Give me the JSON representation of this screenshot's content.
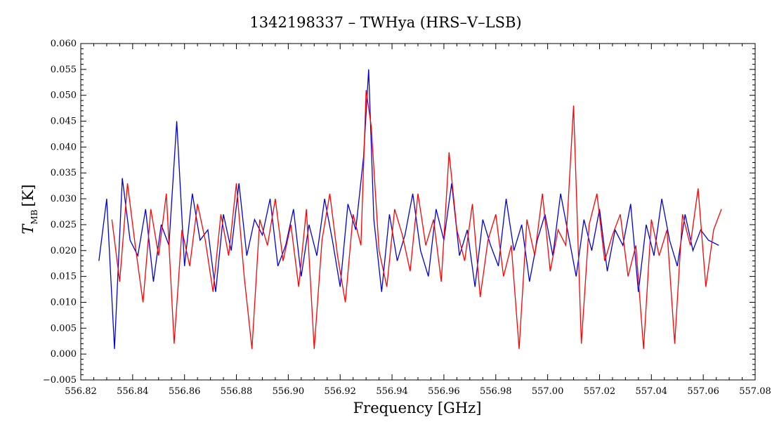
{
  "chart_data": {
    "type": "line",
    "title": "1342198337 – TWHya (HRS–V–LSB)",
    "xlabel": "Frequency [GHz]",
    "ylabel_main": "T",
    "ylabel_sub": "MB",
    "ylabel_unit": "[K]",
    "xlim": [
      556.82,
      557.08
    ],
    "ylim": [
      -0.005,
      0.06
    ],
    "x_ticks": [
      "556.82",
      "556.84",
      "556.86",
      "556.88",
      "556.90",
      "556.92",
      "556.94",
      "556.96",
      "556.98",
      "557.00",
      "557.02",
      "557.04",
      "557.06",
      "557.08"
    ],
    "y_ticks": [
      "−0.005",
      "0.000",
      "0.005",
      "0.010",
      "0.015",
      "0.020",
      "0.025",
      "0.030",
      "0.035",
      "0.040",
      "0.045",
      "0.050",
      "0.055",
      "0.060"
    ],
    "grid": false,
    "legend": "none",
    "series": [
      {
        "color": "#0000dd",
        "x": [
          556.827,
          556.83,
          556.833,
          556.836,
          556.839,
          556.842,
          556.845,
          556.848,
          556.851,
          556.854,
          556.857,
          556.86,
          556.863,
          556.866,
          556.869,
          556.872,
          556.875,
          556.878,
          556.881,
          556.884,
          556.887,
          556.89,
          556.893,
          556.896,
          556.899,
          556.902,
          556.905,
          556.908,
          556.911,
          556.914,
          556.917,
          556.92,
          556.923,
          556.926,
          556.929,
          556.931,
          556.933,
          556.936,
          556.939,
          556.942,
          556.945,
          556.948,
          556.951,
          556.954,
          556.957,
          556.96,
          556.963,
          556.966,
          556.969,
          556.972,
          556.975,
          556.978,
          556.981,
          556.984,
          556.987,
          556.99,
          556.993,
          556.996,
          556.999,
          557.002,
          557.005,
          557.008,
          557.011,
          557.014,
          557.017,
          557.02,
          557.023,
          557.026,
          557.029,
          557.032,
          557.035,
          557.038,
          557.041,
          557.044,
          557.047,
          557.05,
          557.053,
          557.056,
          557.059,
          557.062,
          557.066
        ],
        "y": [
          0.018,
          0.03,
          0.001,
          0.034,
          0.022,
          0.019,
          0.028,
          0.014,
          0.025,
          0.021,
          0.045,
          0.017,
          0.031,
          0.022,
          0.024,
          0.012,
          0.027,
          0.02,
          0.033,
          0.019,
          0.026,
          0.023,
          0.03,
          0.017,
          0.021,
          0.028,
          0.015,
          0.025,
          0.019,
          0.03,
          0.022,
          0.013,
          0.029,
          0.024,
          0.038,
          0.055,
          0.026,
          0.012,
          0.027,
          0.018,
          0.023,
          0.031,
          0.02,
          0.015,
          0.028,
          0.022,
          0.033,
          0.019,
          0.024,
          0.013,
          0.026,
          0.021,
          0.017,
          0.03,
          0.02,
          0.025,
          0.014,
          0.022,
          0.027,
          0.019,
          0.031,
          0.023,
          0.015,
          0.026,
          0.02,
          0.028,
          0.016,
          0.024,
          0.021,
          0.029,
          0.012,
          0.025,
          0.019,
          0.03,
          0.022,
          0.017,
          0.027,
          0.02,
          0.024,
          0.022,
          0.021
        ]
      },
      {
        "color": "#ff0000",
        "x": [
          556.832,
          556.835,
          556.838,
          556.841,
          556.844,
          556.847,
          556.85,
          556.853,
          556.856,
          556.859,
          556.862,
          556.865,
          556.868,
          556.871,
          556.874,
          556.877,
          556.88,
          556.883,
          556.886,
          556.889,
          556.892,
          556.895,
          556.898,
          556.901,
          556.904,
          556.907,
          556.91,
          556.913,
          556.916,
          556.919,
          556.922,
          556.925,
          556.928,
          556.93,
          556.932,
          556.935,
          556.938,
          556.941,
          556.944,
          556.947,
          556.95,
          556.953,
          556.956,
          556.959,
          556.962,
          556.965,
          556.968,
          556.971,
          556.974,
          556.977,
          556.98,
          556.983,
          556.986,
          556.989,
          556.992,
          556.995,
          556.998,
          557.001,
          557.004,
          557.007,
          557.01,
          557.013,
          557.016,
          557.019,
          557.022,
          557.025,
          557.028,
          557.031,
          557.034,
          557.037,
          557.04,
          557.043,
          557.046,
          557.049,
          557.052,
          557.055,
          557.058,
          557.061,
          557.064,
          557.067
        ],
        "y": [
          0.026,
          0.014,
          0.033,
          0.021,
          0.01,
          0.028,
          0.019,
          0.031,
          0.002,
          0.024,
          0.017,
          0.029,
          0.022,
          0.012,
          0.027,
          0.019,
          0.033,
          0.015,
          0.001,
          0.026,
          0.021,
          0.03,
          0.018,
          0.025,
          0.013,
          0.028,
          0.001,
          0.022,
          0.031,
          0.019,
          0.01,
          0.027,
          0.021,
          0.051,
          0.044,
          0.02,
          0.013,
          0.028,
          0.023,
          0.016,
          0.031,
          0.021,
          0.026,
          0.014,
          0.039,
          0.024,
          0.018,
          0.029,
          0.011,
          0.022,
          0.027,
          0.015,
          0.021,
          0.001,
          0.026,
          0.019,
          0.031,
          0.016,
          0.024,
          0.021,
          0.048,
          0.002,
          0.025,
          0.031,
          0.018,
          0.023,
          0.027,
          0.015,
          0.021,
          0.001,
          0.026,
          0.019,
          0.024,
          0.002,
          0.027,
          0.021,
          0.032,
          0.013,
          0.024,
          0.028
        ]
      }
    ]
  }
}
